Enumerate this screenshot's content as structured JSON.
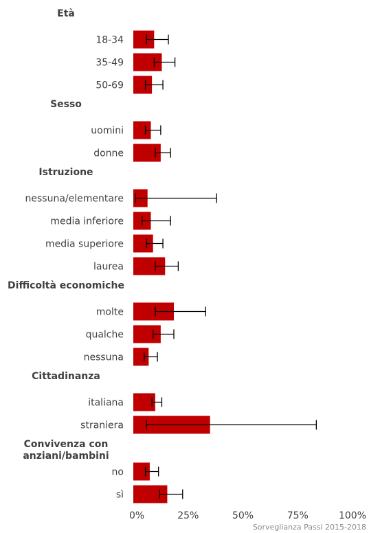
{
  "chart_data": {
    "type": "bar",
    "orientation": "horizontal",
    "bar_color": "#c00000",
    "error_bar_color": "#000000",
    "xlim": [
      0,
      100
    ],
    "x_ticks": [
      {
        "value": 0,
        "label": "0%"
      },
      {
        "value": 25,
        "label": "25%"
      },
      {
        "value": 50,
        "label": "50%"
      },
      {
        "value": 75,
        "label": "75%"
      },
      {
        "value": 100,
        "label": "100%"
      }
    ],
    "groups": [
      {
        "label": "Età",
        "label_lines": [
          "Età"
        ],
        "items": [
          {
            "label": "18-34",
            "value": 9.5,
            "ci": [
              6.0,
              16.0
            ]
          },
          {
            "label": "35-49",
            "value": 13.0,
            "ci": [
              9.5,
              19.0
            ]
          },
          {
            "label": "50-69",
            "value": 8.5,
            "ci": [
              5.5,
              13.5
            ]
          }
        ]
      },
      {
        "label": "Sesso",
        "label_lines": [
          "Sesso"
        ],
        "items": [
          {
            "label": "uomini",
            "value": 8.0,
            "ci": [
              5.5,
              12.5
            ]
          },
          {
            "label": "donne",
            "value": 12.5,
            "ci": [
              10.0,
              17.0
            ]
          }
        ]
      },
      {
        "label": "Istruzione",
        "label_lines": [
          "Istruzione"
        ],
        "items": [
          {
            "label": "nessuna/elementare",
            "value": 6.5,
            "ci": [
              1.0,
              38.0
            ]
          },
          {
            "label": "media inferiore",
            "value": 8.0,
            "ci": [
              4.0,
              17.0
            ]
          },
          {
            "label": "media superiore",
            "value": 9.0,
            "ci": [
              6.0,
              13.5
            ]
          },
          {
            "label": "laurea",
            "value": 14.5,
            "ci": [
              10.0,
              20.5
            ]
          }
        ]
      },
      {
        "label": "Difficoltà economiche",
        "label_lines": [
          "Difficoltà economiche"
        ],
        "items": [
          {
            "label": "molte",
            "value": 18.5,
            "ci": [
              10.0,
              33.0
            ]
          },
          {
            "label": "qualche",
            "value": 12.5,
            "ci": [
              9.0,
              18.5
            ]
          },
          {
            "label": "nessuna",
            "value": 7.0,
            "ci": [
              5.0,
              11.0
            ]
          }
        ]
      },
      {
        "label": "Cittadinanza",
        "label_lines": [
          "Cittadinanza"
        ],
        "items": [
          {
            "label": "italiana",
            "value": 10.0,
            "ci": [
              8.5,
              13.0
            ]
          },
          {
            "label": "straniera",
            "value": 35.0,
            "ci": [
              6.0,
              83.5
            ]
          }
        ]
      },
      {
        "label": "Convivenza con anziani/bambini",
        "label_lines": [
          "Convivenza con",
          "anziani/bambini"
        ],
        "items": [
          {
            "label": "no",
            "value": 7.5,
            "ci": [
              5.5,
              11.5
            ]
          },
          {
            "label": "sì",
            "value": 15.5,
            "ci": [
              12.0,
              22.5
            ]
          }
        ]
      }
    ],
    "source": "Sorveglianza Passi 2015-2018"
  }
}
